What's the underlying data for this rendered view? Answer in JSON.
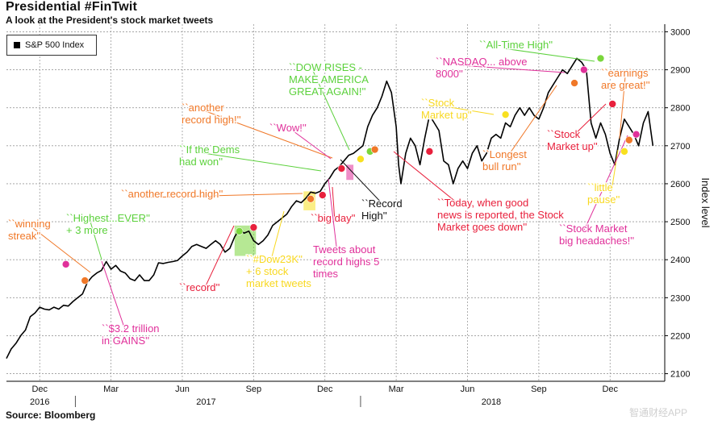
{
  "title": "Presidential #FinTwit",
  "subtitle": "A look at the President's stock market tweets",
  "source": "Source: Bloomberg",
  "watermark": "智通财经APP",
  "legend": {
    "label": "S&P 500 Index"
  },
  "chart_data": {
    "type": "line",
    "ylabel": "Index level",
    "ylim": [
      2080,
      3020
    ],
    "y_ticks": [
      2100,
      2200,
      2300,
      2400,
      2500,
      2600,
      2700,
      2800,
      2900,
      3000
    ],
    "x_ticks": [
      {
        "label": "Dec",
        "month": 0
      },
      {
        "label": "Mar",
        "month": 3
      },
      {
        "label": "Jun",
        "month": 6
      },
      {
        "label": "Sep",
        "month": 9
      },
      {
        "label": "Dec",
        "month": 12
      },
      {
        "label": "Mar",
        "month": 15
      },
      {
        "label": "Jun",
        "month": 18
      },
      {
        "label": "Sep",
        "month": 21
      },
      {
        "label": "Dec",
        "month": 24
      }
    ],
    "year_labels": [
      {
        "label": "2016",
        "month": 0
      },
      {
        "label": "2017",
        "month": 7
      },
      {
        "label": "2018",
        "month": 19
      }
    ],
    "grid": true,
    "series": [
      {
        "name": "S&P 500 Index",
        "color": "#000000",
        "points": [
          [
            -1.4,
            2140
          ],
          [
            -1.2,
            2165
          ],
          [
            -1.0,
            2180
          ],
          [
            -0.8,
            2200
          ],
          [
            -0.6,
            2215
          ],
          [
            -0.4,
            2250
          ],
          [
            -0.2,
            2260
          ],
          [
            0.0,
            2275
          ],
          [
            0.2,
            2270
          ],
          [
            0.4,
            2268
          ],
          [
            0.6,
            2275
          ],
          [
            0.8,
            2270
          ],
          [
            1.0,
            2280
          ],
          [
            1.2,
            2278
          ],
          [
            1.4,
            2290
          ],
          [
            1.6,
            2300
          ],
          [
            1.8,
            2310
          ],
          [
            2.0,
            2340
          ],
          [
            2.2,
            2355
          ],
          [
            2.4,
            2365
          ],
          [
            2.6,
            2372
          ],
          [
            2.8,
            2395
          ],
          [
            3.0,
            2375
          ],
          [
            3.2,
            2385
          ],
          [
            3.4,
            2370
          ],
          [
            3.6,
            2365
          ],
          [
            3.8,
            2350
          ],
          [
            4.0,
            2345
          ],
          [
            4.2,
            2360
          ],
          [
            4.4,
            2345
          ],
          [
            4.6,
            2345
          ],
          [
            4.8,
            2360
          ],
          [
            5.0,
            2392
          ],
          [
            5.2,
            2390
          ],
          [
            5.4,
            2393
          ],
          [
            5.6,
            2395
          ],
          [
            5.8,
            2398
          ],
          [
            6.0,
            2410
          ],
          [
            6.2,
            2420
          ],
          [
            6.4,
            2435
          ],
          [
            6.6,
            2440
          ],
          [
            6.8,
            2435
          ],
          [
            7.0,
            2430
          ],
          [
            7.2,
            2440
          ],
          [
            7.4,
            2450
          ],
          [
            7.6,
            2440
          ],
          [
            7.8,
            2420
          ],
          [
            8.0,
            2430
          ],
          [
            8.2,
            2460
          ],
          [
            8.4,
            2480
          ],
          [
            8.6,
            2470
          ],
          [
            8.8,
            2475
          ],
          [
            9.0,
            2450
          ],
          [
            9.2,
            2440
          ],
          [
            9.4,
            2450
          ],
          [
            9.6,
            2465
          ],
          [
            9.8,
            2490
          ],
          [
            10.0,
            2500
          ],
          [
            10.2,
            2510
          ],
          [
            10.4,
            2520
          ],
          [
            10.6,
            2540
          ],
          [
            10.8,
            2555
          ],
          [
            11.0,
            2550
          ],
          [
            11.2,
            2562
          ],
          [
            11.4,
            2578
          ],
          [
            11.6,
            2575
          ],
          [
            11.8,
            2580
          ],
          [
            12.0,
            2600
          ],
          [
            12.2,
            2615
          ],
          [
            12.4,
            2635
          ],
          [
            12.6,
            2645
          ],
          [
            12.8,
            2660
          ],
          [
            13.0,
            2675
          ],
          [
            13.2,
            2680
          ],
          [
            13.4,
            2690
          ],
          [
            13.6,
            2700
          ],
          [
            13.8,
            2750
          ],
          [
            14.0,
            2780
          ],
          [
            14.2,
            2800
          ],
          [
            14.4,
            2830
          ],
          [
            14.6,
            2870
          ],
          [
            14.8,
            2840
          ],
          [
            15.0,
            2750
          ],
          [
            15.1,
            2650
          ],
          [
            15.2,
            2600
          ],
          [
            15.4,
            2680
          ],
          [
            15.6,
            2720
          ],
          [
            15.8,
            2700
          ],
          [
            16.0,
            2650
          ],
          [
            16.2,
            2720
          ],
          [
            16.4,
            2780
          ],
          [
            16.6,
            2760
          ],
          [
            16.8,
            2740
          ],
          [
            17.0,
            2660
          ],
          [
            17.2,
            2650
          ],
          [
            17.4,
            2600
          ],
          [
            17.6,
            2640
          ],
          [
            17.8,
            2660
          ],
          [
            18.0,
            2640
          ],
          [
            18.2,
            2680
          ],
          [
            18.4,
            2700
          ],
          [
            18.6,
            2660
          ],
          [
            18.8,
            2680
          ],
          [
            19.0,
            2720
          ],
          [
            19.2,
            2730
          ],
          [
            19.4,
            2720
          ],
          [
            19.6,
            2760
          ],
          [
            19.8,
            2750
          ],
          [
            20.0,
            2780
          ],
          [
            20.2,
            2800
          ],
          [
            20.4,
            2780
          ],
          [
            20.6,
            2800
          ],
          [
            20.8,
            2780
          ],
          [
            21.0,
            2770
          ],
          [
            21.2,
            2800
          ],
          [
            21.4,
            2840
          ],
          [
            21.6,
            2860
          ],
          [
            21.8,
            2880
          ],
          [
            22.0,
            2900
          ],
          [
            22.2,
            2890
          ],
          [
            22.4,
            2910
          ],
          [
            22.6,
            2930
          ],
          [
            22.8,
            2920
          ],
          [
            23.0,
            2900
          ],
          [
            23.2,
            2760
          ],
          [
            23.4,
            2720
          ],
          [
            23.6,
            2760
          ],
          [
            23.8,
            2730
          ],
          [
            24.0,
            2680
          ],
          [
            24.2,
            2650
          ],
          [
            24.4,
            2720
          ],
          [
            24.6,
            2770
          ],
          [
            24.8,
            2750
          ],
          [
            25.0,
            2730
          ],
          [
            25.2,
            2700
          ],
          [
            25.4,
            2760
          ],
          [
            25.6,
            2790
          ],
          [
            25.8,
            2700
          ]
        ]
      }
    ],
    "markers": [
      {
        "month": 1.1,
        "value": 2388,
        "color": "#e0309a"
      },
      {
        "month": 1.9,
        "value": 2345,
        "color": "#f07828"
      },
      {
        "month": 8.4,
        "value": 2475,
        "color": "#7ad63c"
      },
      {
        "month": 9.0,
        "value": 2485,
        "color": "#e8203c"
      },
      {
        "month": 11.4,
        "value": 2560,
        "color": "#f07828"
      },
      {
        "month": 11.9,
        "value": 2570,
        "color": "#e8203c"
      },
      {
        "month": 12.7,
        "value": 2640,
        "color": "#e8203c"
      },
      {
        "month": 13.5,
        "value": 2665,
        "color": "#f8e020"
      },
      {
        "month": 13.9,
        "value": 2685,
        "color": "#7ad63c"
      },
      {
        "month": 14.1,
        "value": 2690,
        "color": "#f07828"
      },
      {
        "month": 16.4,
        "value": 2685,
        "color": "#e8203c"
      },
      {
        "month": 19.6,
        "value": 2782,
        "color": "#f8e020"
      },
      {
        "month": 22.5,
        "value": 2865,
        "color": "#f07828"
      },
      {
        "month": 22.9,
        "value": 2900,
        "color": "#e0309a"
      },
      {
        "month": 23.6,
        "value": 2930,
        "color": "#7ad63c"
      },
      {
        "month": 24.1,
        "value": 2810,
        "color": "#e8203c"
      },
      {
        "month": 24.6,
        "value": 2685,
        "color": "#f8e020"
      },
      {
        "month": 24.8,
        "value": 2715,
        "color": "#f07828"
      },
      {
        "month": 25.1,
        "value": 2730,
        "color": "#e0309a"
      }
    ],
    "highlights": [
      {
        "month_start": 8.2,
        "month_end": 9.1,
        "low": 2410,
        "high": 2490,
        "color": "#7ad63c"
      },
      {
        "month_start": 11.1,
        "month_end": 11.6,
        "low": 2530,
        "high": 2580,
        "color": "#f8e020"
      },
      {
        "month_start": 12.9,
        "month_end": 13.2,
        "low": 2610,
        "high": 2650,
        "color": "#e0309a"
      }
    ],
    "annotations": [
      {
        "text": "``winning\nstreak''",
        "color": "#f07828"
      },
      {
        "text": "``Highest...EVER''\n+ 3 more",
        "color": "#5cd13c"
      },
      {
        "text": "``$3.2 trillion\nin GAINS''",
        "color": "#e0309a"
      },
      {
        "text": "``another record high''",
        "color": "#f07828"
      },
      {
        "text": "``record''",
        "color": "#e8203c"
      },
      {
        "text": "``If the Dems\nhad won''",
        "color": "#5cd13c"
      },
      {
        "text": "``another\nrecord high!''",
        "color": "#f07828"
      },
      {
        "text": "``Wow!''",
        "color": "#e0309a"
      },
      {
        "text": "``#Dow23K''\n+ 6 stock\nmarket tweets",
        "color": "#f8d820"
      },
      {
        "text": "``big day''",
        "color": "#e8203c"
      },
      {
        "text": "Tweets about\nrecord highs 5\ntimes",
        "color": "#e0309a"
      },
      {
        "text": "``DOW RISES -\nMAKE AMERICA\nGREAT AGAIN!''",
        "color": "#5cd13c"
      },
      {
        "text": "``Record\nHigh''",
        "color": "#111111"
      },
      {
        "text": "``Today, when good\nnews is reported, the Stock\nMarket goes down''",
        "color": "#e8203c"
      },
      {
        "text": "``Stock\nMarket up''",
        "color": "#f8d820"
      },
      {
        "text": "``Longest\nbull run''",
        "color": "#f07828"
      },
      {
        "text": "``NASDAQ... above\n8000''",
        "color": "#e0309a"
      },
      {
        "text": "``All-Time High''",
        "color": "#5cd13c"
      },
      {
        "text": "``Stock\nMarket up''",
        "color": "#e8203c"
      },
      {
        "text": "``earnings\nare great!''",
        "color": "#f07828"
      },
      {
        "text": "``little\npause''",
        "color": "#f8d820"
      },
      {
        "text": "``Stock Market\nbig headaches!''",
        "color": "#e0309a"
      }
    ]
  }
}
